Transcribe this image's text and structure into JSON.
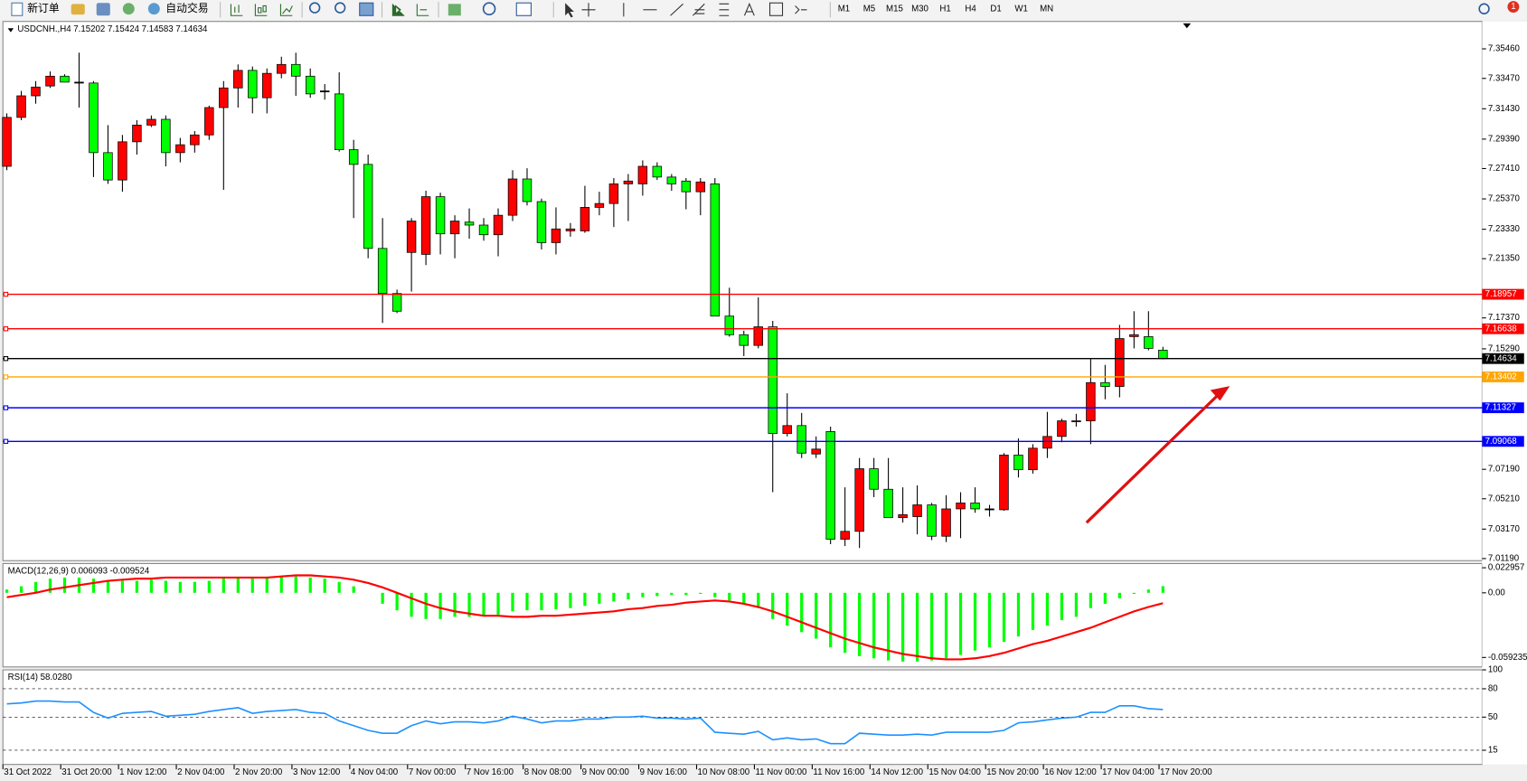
{
  "toolbar": {
    "new_order": "新订单",
    "auto_trading": "自动交易",
    "timeframes": [
      "M1",
      "M5",
      "M15",
      "M30",
      "H1",
      "H4",
      "D1",
      "W1",
      "MN"
    ],
    "notifications": "1"
  },
  "chart_data": [
    {
      "type": "candlestick",
      "title": "USDCNH.,H4 7.15202 7.15424 7.14583 7.14634",
      "categories": [
        "31 Oct 2022",
        null,
        null,
        null,
        "31 Oct 20:00",
        null,
        null,
        null,
        "1 Nov 12:00",
        null,
        null,
        null,
        "2 Nov 04:00",
        null,
        null,
        null,
        "2 Nov 20:00",
        null,
        null,
        null,
        "3 Nov 12:00",
        null,
        null,
        null,
        "4 Nov 04:00",
        null,
        null,
        null,
        "7 Nov 00:00",
        null,
        null,
        null,
        "7 Nov 16:00",
        null,
        null,
        null,
        "8 Nov 08:00",
        null,
        null,
        null,
        "9 Nov 00:00",
        null,
        null,
        null,
        "9 Nov 16:00",
        null,
        null,
        null,
        "10 Nov 08:00",
        null,
        null,
        null,
        "11 Nov 00:00",
        null,
        null,
        null,
        "11 Nov 16:00",
        null,
        null,
        null,
        "14 Nov 12:00",
        null,
        null,
        null,
        "15 Nov 04:00",
        null,
        null,
        null,
        "15 Nov 20:00",
        null,
        null,
        null,
        "16 Nov 12:00",
        null,
        null,
        null,
        "17 Nov 04:00",
        null,
        null,
        null,
        "17 Nov 20:00"
      ],
      "open": [
        7.2756,
        7.3085,
        7.323,
        7.3296,
        7.3362,
        7.3322,
        7.3316,
        7.2848,
        7.2664,
        7.2921,
        7.3033,
        7.3072,
        7.2848,
        7.2901,
        7.2967,
        7.3151,
        7.3283,
        7.3401,
        7.3217,
        7.3381,
        7.3441,
        7.3362,
        7.3263,
        7.3243,
        7.2868,
        7.2769,
        7.2204,
        7.1901,
        7.2177,
        7.2164,
        7.2552,
        7.2302,
        7.2381,
        7.2361,
        7.2296,
        7.2427,
        7.2671,
        7.2519,
        7.2243,
        7.2322,
        7.2322,
        7.248,
        7.2506,
        7.2638,
        7.2638,
        7.2756,
        7.2684,
        7.2657,
        7.2585,
        7.2638,
        7.1749,
        7.1624,
        7.1552,
        7.1677,
        7.096,
        7.1013,
        7.0822,
        7.0973,
        7.0249,
        7.0302,
        7.0723,
        7.0585,
        7.0394,
        7.0401,
        7.048,
        7.0269,
        7.0453,
        7.0493,
        7.0453,
        7.0447,
        7.0815,
        7.0716,
        7.0861,
        7.094,
        7.1039,
        7.1045,
        7.1302,
        7.1276,
        7.1611,
        7.1611,
        7.15202
      ],
      "high": [
        7.3112,
        7.3263,
        7.3329,
        7.3394,
        7.3375,
        7.352,
        7.3329,
        7.3033,
        7.2967,
        7.3066,
        7.3098,
        7.3098,
        7.2947,
        7.2993,
        7.3164,
        7.3329,
        7.3441,
        7.3427,
        7.3414,
        7.3493,
        7.352,
        7.3414,
        7.3309,
        7.3388,
        7.2934,
        7.2835,
        7.2408,
        7.1927,
        7.2408,
        7.2592,
        7.2579,
        7.2427,
        7.2473,
        7.2408,
        7.2473,
        7.273,
        7.2743,
        7.2539,
        7.248,
        7.2375,
        7.2625,
        7.2585,
        7.2677,
        7.2704,
        7.2796,
        7.2783,
        7.2704,
        7.2677,
        7.2677,
        7.2677,
        7.194,
        7.1651,
        7.1875,
        7.1717,
        7.123,
        7.1098,
        7.094,
        7.1006,
        7.0598,
        7.0795,
        7.0795,
        7.0795,
        7.0598,
        7.0611,
        7.0493,
        7.0545,
        7.0565,
        7.0598,
        7.048,
        7.0828,
        7.0927,
        7.0888,
        7.1105,
        7.1059,
        7.1092,
        7.1467,
        7.1421,
        7.169,
        7.1782,
        7.1782,
        7.15424
      ],
      "low": [
        7.273,
        7.3066,
        7.3177,
        7.3283,
        7.3322,
        7.3151,
        7.2684,
        7.2638,
        7.2585,
        7.2835,
        7.302,
        7.2756,
        7.2783,
        7.2848,
        7.2934,
        7.2598,
        7.3151,
        7.3112,
        7.3112,
        7.3348,
        7.323,
        7.3217,
        7.3204,
        7.2855,
        7.2408,
        7.2138,
        7.1703,
        7.1769,
        7.1914,
        7.2092,
        7.2164,
        7.2138,
        7.2269,
        7.2256,
        7.2151,
        7.2388,
        7.2493,
        7.2197,
        7.2164,
        7.2283,
        7.2309,
        7.2427,
        7.2348,
        7.2388,
        7.2559,
        7.2664,
        7.2592,
        7.2467,
        7.2427,
        7.1749,
        7.1611,
        7.148,
        7.1532,
        7.0565,
        7.094,
        7.0795,
        7.0795,
        7.0216,
        7.0203,
        7.019,
        7.0532,
        7.0394,
        7.0361,
        7.0282,
        7.0243,
        7.023,
        7.0256,
        7.0427,
        7.0401,
        7.044,
        7.0664,
        7.069,
        7.0795,
        7.0901,
        7.1006,
        7.0888,
        7.119,
        7.1203,
        7.1532,
        7.1519,
        7.14583
      ],
      "close": [
        7.3085,
        7.323,
        7.3289,
        7.3362,
        7.3322,
        7.3322,
        7.2848,
        7.2664,
        7.2921,
        7.3033,
        7.3072,
        7.2848,
        7.2901,
        7.2967,
        7.3151,
        7.3283,
        7.3401,
        7.3217,
        7.3381,
        7.3441,
        7.3362,
        7.3243,
        7.3263,
        7.2868,
        7.2769,
        7.2204,
        7.1901,
        7.1782,
        7.2388,
        7.2552,
        7.2302,
        7.2388,
        7.2361,
        7.2296,
        7.2427,
        7.2671,
        7.2519,
        7.2243,
        7.2335,
        7.2335,
        7.248,
        7.2506,
        7.2638,
        7.2657,
        7.2756,
        7.2684,
        7.2638,
        7.2585,
        7.2651,
        7.1749,
        7.1624,
        7.1552,
        7.1677,
        7.096,
        7.1013,
        7.0828,
        7.0855,
        7.0249,
        7.0302,
        7.0723,
        7.0585,
        7.0394,
        7.0414,
        7.048,
        7.0269,
        7.0453,
        7.0493,
        7.0453,
        7.0453,
        7.0815,
        7.0716,
        7.0861,
        7.094,
        7.1045,
        7.1045,
        7.1302,
        7.1276,
        7.1598,
        7.1624,
        7.1532,
        7.14634
      ],
      "up_color": "#ff0000",
      "down_color": "#00ff00",
      "ylim": [
        7.0105,
        7.373
      ],
      "yticks": [
        {
          "value": 7.3546,
          "label": "7.35460"
        },
        {
          "value": 7.3347,
          "label": "7.33470"
        },
        {
          "value": 7.3143,
          "label": "7.31430"
        },
        {
          "value": 7.2939,
          "label": "7.29390"
        },
        {
          "value": 7.2741,
          "label": "7.27410"
        },
        {
          "value": 7.2537,
          "label": "7.25370"
        },
        {
          "value": 7.2333,
          "label": "7.23330"
        },
        {
          "value": 7.2135,
          "label": "7.21350"
        },
        {
          "value": 7.1737,
          "label": "7.17370"
        },
        {
          "value": 7.1529,
          "label": "7.15290"
        },
        {
          "value": 7.0719,
          "label": "7.07190"
        },
        {
          "value": 7.0521,
          "label": "7.05210"
        },
        {
          "value": 7.0317,
          "label": "7.03170"
        },
        {
          "value": 7.0119,
          "label": "7.01190"
        }
      ],
      "levels": [
        {
          "value": 7.18957,
          "color": "#ff0000"
        },
        {
          "value": 7.16638,
          "color": "#ff0000"
        },
        {
          "value": 7.14634,
          "color": "#000000"
        },
        {
          "value": 7.13402,
          "color": "#ffa500"
        },
        {
          "value": 7.11327,
          "color": "#0000ff"
        },
        {
          "value": 7.09068,
          "color": "#0000ff"
        }
      ]
    },
    {
      "type": "macd",
      "title": "MACD(12,26,9) 0.006093 -0.009524",
      "histogram": [
        0.003,
        0.006,
        0.01,
        0.013,
        0.014,
        0.014,
        0.013,
        0.011,
        0.011,
        0.011,
        0.012,
        0.011,
        0.01,
        0.01,
        0.011,
        0.013,
        0.014,
        0.013,
        0.014,
        0.015,
        0.015,
        0.014,
        0.013,
        0.01,
        0.006,
        0,
        -0.01,
        -0.016,
        -0.022,
        -0.024,
        -0.024,
        -0.022,
        -0.022,
        -0.021,
        -0.02,
        -0.017,
        -0.016,
        -0.016,
        -0.015,
        -0.014,
        -0.012,
        -0.01,
        -0.008,
        -0.006,
        -0.004,
        -0.003,
        -0.002,
        -0.002,
        -0.001,
        -0.004,
        -0.007,
        -0.01,
        -0.014,
        -0.024,
        -0.03,
        -0.036,
        -0.042,
        -0.05,
        -0.055,
        -0.058,
        -0.06,
        -0.062,
        -0.063,
        -0.063,
        -0.062,
        -0.06,
        -0.057,
        -0.053,
        -0.05,
        -0.045,
        -0.04,
        -0.034,
        -0.03,
        -0.025,
        -0.022,
        -0.014,
        -0.01,
        -0.005,
        -0.001,
        0.003,
        0.006093
      ],
      "signal": [
        -0.004,
        -0.002,
        0,
        0.003,
        0.005,
        0.007,
        0.009,
        0.011,
        0.012,
        0.013,
        0.013,
        0.014,
        0.014,
        0.014,
        0.014,
        0.014,
        0.014,
        0.014,
        0.014,
        0.015,
        0.016,
        0.016,
        0.015,
        0.014,
        0.012,
        0.009,
        0.005,
        0,
        -0.005,
        -0.01,
        -0.014,
        -0.017,
        -0.019,
        -0.021,
        -0.021,
        -0.022,
        -0.022,
        -0.021,
        -0.021,
        -0.02,
        -0.019,
        -0.018,
        -0.017,
        -0.015,
        -0.014,
        -0.012,
        -0.011,
        -0.009,
        -0.008,
        -0.007,
        -0.008,
        -0.01,
        -0.013,
        -0.017,
        -0.022,
        -0.027,
        -0.032,
        -0.037,
        -0.042,
        -0.046,
        -0.05,
        -0.053,
        -0.056,
        -0.058,
        -0.06,
        -0.061,
        -0.061,
        -0.06,
        -0.058,
        -0.055,
        -0.051,
        -0.047,
        -0.044,
        -0.04,
        -0.036,
        -0.032,
        -0.027,
        -0.022,
        -0.017,
        -0.013,
        -0.009524
      ],
      "histogram_color": "#00ff00",
      "signal_color": "#ff0000",
      "ylim": [
        -0.0679,
        0.0268
      ],
      "yticks": [
        0.022957,
        {
          "value": 0,
          "label": "0.00"
        },
        -0.059235
      ]
    },
    {
      "type": "rsi",
      "title": "RSI(14) 58.0280",
      "values": [
        64,
        65,
        67,
        67,
        66,
        66,
        55,
        49,
        54,
        55,
        56,
        51,
        52,
        53,
        56,
        58,
        60,
        54,
        56,
        57,
        58,
        55,
        54,
        46,
        41,
        36,
        33,
        33,
        41,
        46,
        43,
        45,
        45,
        44,
        46,
        51,
        48,
        44,
        46,
        46,
        48,
        48,
        50,
        50,
        51,
        49,
        49,
        48,
        49,
        34,
        33,
        32,
        35,
        26,
        28,
        26,
        27,
        22,
        22,
        33,
        32,
        31,
        31,
        32,
        31,
        34,
        34,
        34,
        34,
        36,
        44,
        45,
        47,
        49,
        50,
        55,
        55,
        62,
        62,
        59,
        58.028
      ],
      "color": "#1e90ff",
      "ylim": [
        0,
        100
      ],
      "yticks": [
        100,
        80,
        50,
        15
      ],
      "levels": [
        80,
        50,
        15
      ]
    }
  ]
}
